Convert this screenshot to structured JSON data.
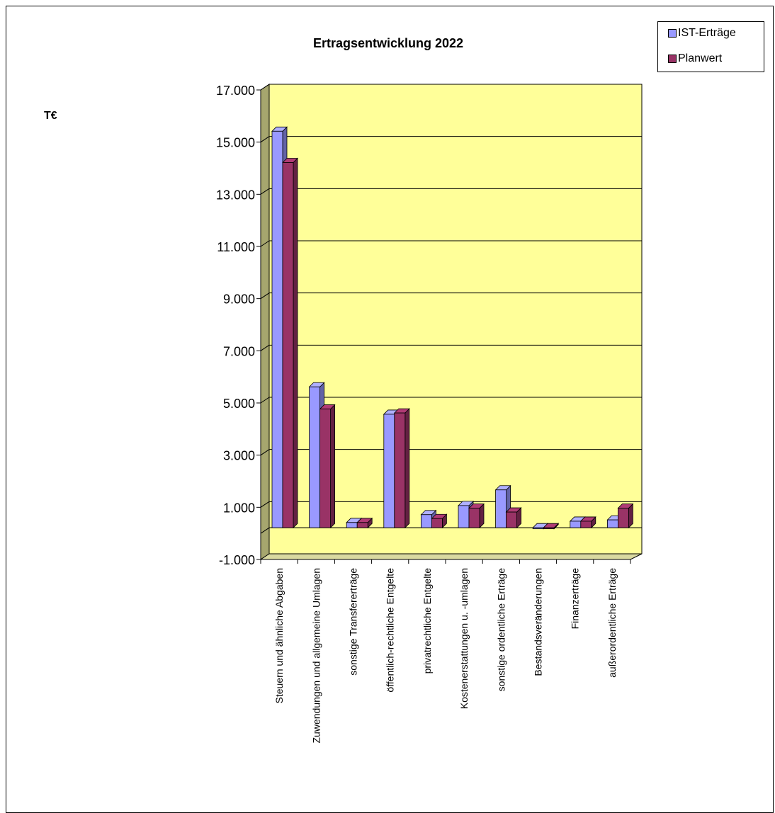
{
  "chart_data": {
    "type": "bar",
    "title": "Ertragsentwicklung 2022",
    "ylabel": "T€",
    "xlabel": "",
    "ylim": [
      -1000,
      17000
    ],
    "yticks": [
      -1000,
      1000,
      3000,
      5000,
      7000,
      9000,
      11000,
      13000,
      15000,
      17000
    ],
    "ytick_labels": [
      "-1.000",
      "1.000",
      "3.000",
      "5.000",
      "7.000",
      "9.000",
      "11.000",
      "13.000",
      "15.000",
      "17.000"
    ],
    "grid": true,
    "legend_position": "top-right",
    "categories": [
      "Steuern und ähnliche Abgaben",
      "Zuwendungen und allgemeine Umlagen",
      "sonstige Transfererträge",
      "öffentlich-rechtliche Entgelte",
      "privatrechtliche Entgelte",
      "Kostenerstattungen u. -umlagen",
      "sonstige ordentliche Erträge",
      "Bestandsveränderungen",
      "Finanzerträge",
      "außerordentliche Erträge"
    ],
    "series": [
      {
        "name": "IST-Erträge",
        "color": "#9999ff",
        "values": [
          15200,
          5400,
          200,
          4350,
          500,
          850,
          1450,
          0,
          250,
          300
        ]
      },
      {
        "name": "Planwert",
        "color": "#993366",
        "values": [
          14000,
          4550,
          200,
          4400,
          350,
          750,
          600,
          0,
          250,
          750
        ]
      }
    ],
    "colors": {
      "plot_area": "#ffff99",
      "wall_side": "#a6a66e",
      "floor": "#d9d9a0"
    }
  }
}
